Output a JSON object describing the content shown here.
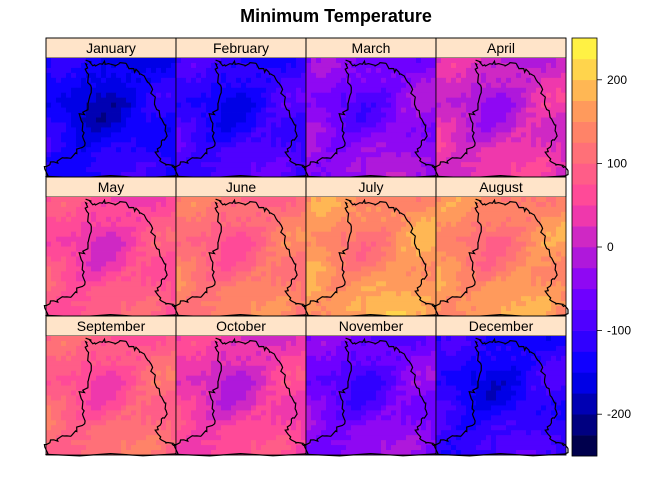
{
  "chart_data": {
    "type": "heatmap",
    "title": "Minimum Temperature",
    "panels": [
      "January",
      "February",
      "March",
      "April",
      "May",
      "June",
      "July",
      "August",
      "September",
      "October",
      "November",
      "December"
    ],
    "panel_layout": {
      "columns": 4,
      "rows": 3
    },
    "panel_mean_values": [
      -150,
      -120,
      -55,
      5,
      55,
      105,
      145,
      135,
      80,
      30,
      -70,
      -130
    ],
    "colorbar": {
      "min": -250,
      "max": 250,
      "ticks": [
        -200,
        -100,
        0,
        100,
        200
      ],
      "tick_labels": [
        "-200",
        "-100",
        "0",
        "100",
        "200"
      ],
      "level_step": 25,
      "palette_stops": [
        "#000033",
        "#0000ff",
        "#7f00ff",
        "#ff40a0",
        "#ff8c60",
        "#ffff40"
      ]
    },
    "strip_background": "#ffe4c9"
  }
}
